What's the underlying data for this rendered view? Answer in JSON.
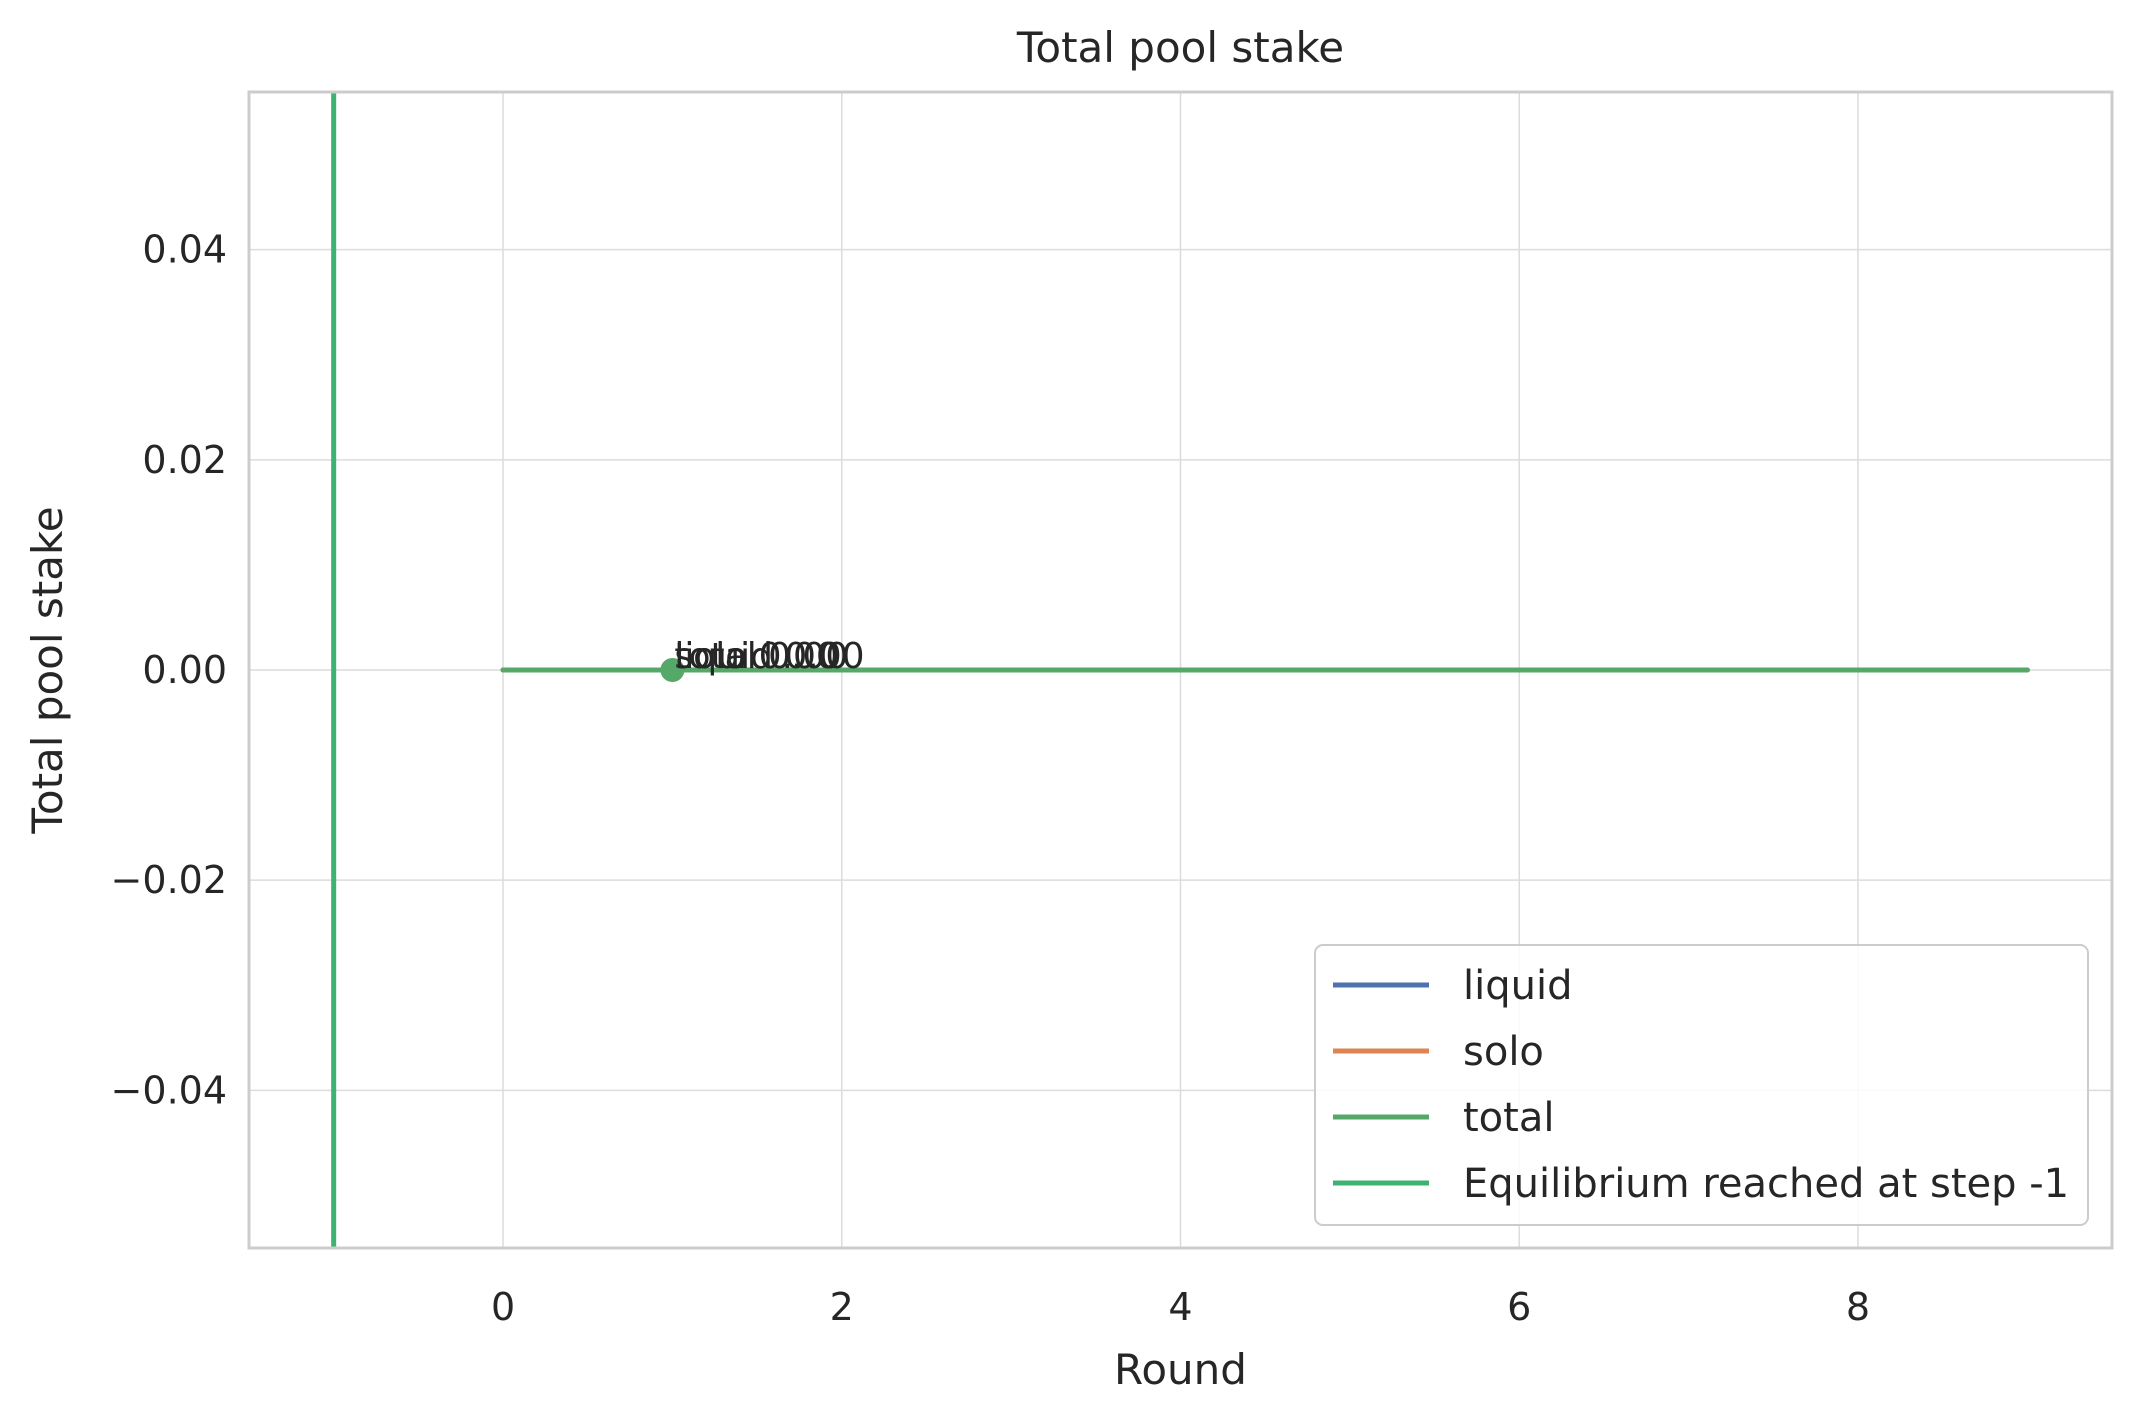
{
  "chart_data": {
    "type": "line",
    "title": "Total pool stake",
    "xlabel": "Round",
    "ylabel": "Total pool stake",
    "xlim": [
      -1.5,
      9.5
    ],
    "ylim": [
      -0.055,
      0.055
    ],
    "xticks": [
      0,
      2,
      4,
      6,
      8
    ],
    "xtick_labels": [
      "0",
      "2",
      "4",
      "6",
      "8"
    ],
    "yticks": [
      0.04,
      0.02,
      0.0,
      -0.02,
      -0.04
    ],
    "ytick_labels": [
      "0.04",
      "0.02",
      "0.00",
      "−0.02",
      "−0.04"
    ],
    "grid": true,
    "legend_location": "lower-right",
    "x": [
      0,
      1,
      2,
      3,
      4,
      5,
      6,
      7,
      8,
      9
    ],
    "series": [
      {
        "name": "liquid",
        "color": "#4c72b0",
        "values": [
          0,
          0,
          0,
          0,
          0,
          0,
          0,
          0,
          0,
          0
        ]
      },
      {
        "name": "solo",
        "color": "#dd8452",
        "values": [
          0,
          0,
          0,
          0,
          0,
          0,
          0,
          0,
          0,
          0
        ]
      },
      {
        "name": "total",
        "color": "#55a868",
        "values": [
          0,
          0,
          0,
          0,
          0,
          0,
          0,
          0,
          0,
          0
        ]
      }
    ],
    "vline": {
      "name": "Equilibrium reached at step -1",
      "x": -1,
      "color": "#3cb371"
    },
    "marker": {
      "x": 1,
      "y": 0,
      "color": "#55a868"
    },
    "annotations": [
      {
        "text": "liquid 0.00",
        "x": 1,
        "y": 0
      },
      {
        "text": "solo 0.00",
        "x": 1,
        "y": 0
      },
      {
        "text": "total 0.00",
        "x": 1,
        "y": 0
      }
    ]
  }
}
